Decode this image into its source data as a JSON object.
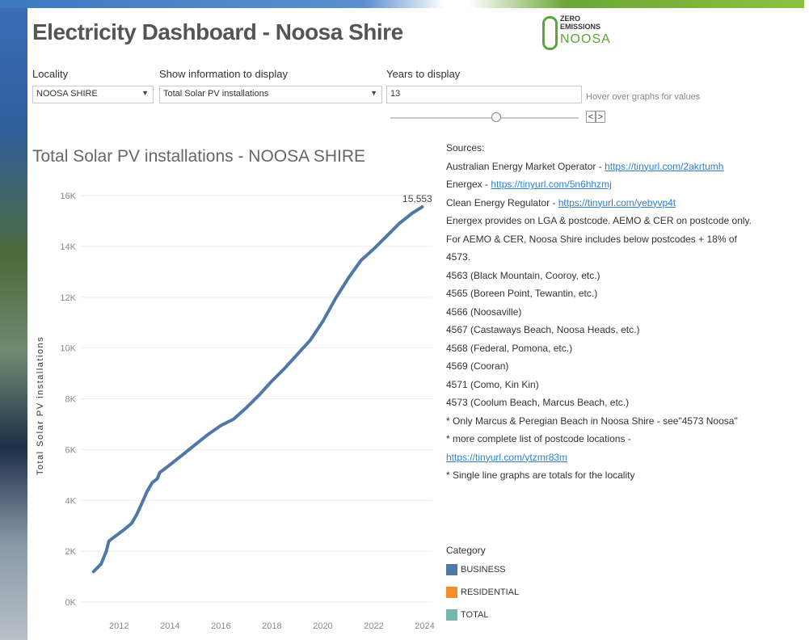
{
  "header": {
    "title": "Electricity Dashboard - Noosa Shire",
    "logo": {
      "line1": "ZERO",
      "line2": "EMISSIONS",
      "line3": "NOOSA"
    }
  },
  "filters": {
    "locality": {
      "label": "Locality",
      "value": "NOOSA SHIRE"
    },
    "info": {
      "label": "Show information to display",
      "value": "Total Solar PV installations"
    },
    "years": {
      "label": "Years to display",
      "value": "13"
    },
    "hint": "Hover over graphs for values",
    "prev_label": "<",
    "next_label": ">"
  },
  "colors": {
    "line": "#4e79a7",
    "business": "#4e79a7",
    "residential": "#f28e2b",
    "total": "#76b7b2",
    "link": "#2f7fd0"
  },
  "chart_data": {
    "type": "line",
    "title": "Total Solar PV installations - NOOSA SHIRE",
    "ylabel": "Total Solar PV installations",
    "xlabel": "",
    "xlim": [
      2010.5,
      2024.3
    ],
    "ylim": [
      0,
      16000
    ],
    "yticks": [
      "0K",
      "2K",
      "4K",
      "6K",
      "8K",
      "10K",
      "12K",
      "14K",
      "16K"
    ],
    "xticks": [
      "2012",
      "2014",
      "2016",
      "2018",
      "2020",
      "2022",
      "2024"
    ],
    "series": [
      {
        "x": [
          2011.0,
          2011.3,
          2011.5,
          2011.6,
          2011.8,
          2012.0,
          2012.2,
          2012.5,
          2012.7,
          2012.9,
          2013.1,
          2013.3,
          2013.5,
          2013.6,
          2013.8,
          2014.0,
          2014.5,
          2015.0,
          2015.5,
          2016.0,
          2016.5,
          2017.0,
          2017.5,
          2018.0,
          2018.5,
          2019.0,
          2019.5,
          2020.0,
          2020.5,
          2021.0,
          2021.5,
          2022.0,
          2022.5,
          2023.0,
          2023.5,
          2023.9
        ],
        "y": [
          1200,
          1500,
          2000,
          2400,
          2550,
          2700,
          2850,
          3100,
          3450,
          3900,
          4350,
          4700,
          4850,
          5100,
          5250,
          5400,
          5800,
          6200,
          6600,
          6950,
          7200,
          7650,
          8150,
          8700,
          9200,
          9750,
          10300,
          11050,
          11950,
          12750,
          13450,
          13900,
          14400,
          14900,
          15300,
          15553
        ]
      }
    ],
    "annotation": "15,553",
    "legend": {
      "title": "Category",
      "items": [
        "BUSINESS",
        "RESIDENTIAL",
        "TOTAL"
      ]
    }
  },
  "sources": {
    "heading": "Sources:",
    "aemo": {
      "text": "Australian Energy Market Operator - ",
      "link": "https://tinyurl.com/2akrtumh"
    },
    "energex": {
      "text": "Energex - ",
      "link": "https://tinyurl.com/5n6hhzmj"
    },
    "cer": {
      "text": "Clean Energy Regulator - ",
      "link": "https://tinyurl.com/yebyvp4t"
    },
    "note1": "Energex provides on LGA & postcode. AEMO & CER on postcode only.",
    "note2": "For AEMO & CER, Noosa Shire includes below postcodes + 18% of",
    "note3": "4573.",
    "postcodes": [
      "4563 (Black Mountain, Cooroy, etc.)",
      "4565 (Boreen Point, Tewantin, etc.)",
      "4566 (Noosaville)",
      "4567 (Castaways Beach, Noosa Heads, etc.)",
      "4568 (Federal, Pomona, etc.)",
      "4569 (Cooran)",
      "4571 (Como, Kin Kin)",
      "4573 (Coolum Beach, Marcus Beach, etc.)"
    ],
    "note4": "* Only Marcus & Peregian Beach in Noosa Shire - see\"4573 Noosa\"",
    "note5": "* more complete list of postcode locations -",
    "link5": "https://tinyurl.com/ytzmr83m",
    "note6": "* Single line graphs are totals for the locality"
  }
}
